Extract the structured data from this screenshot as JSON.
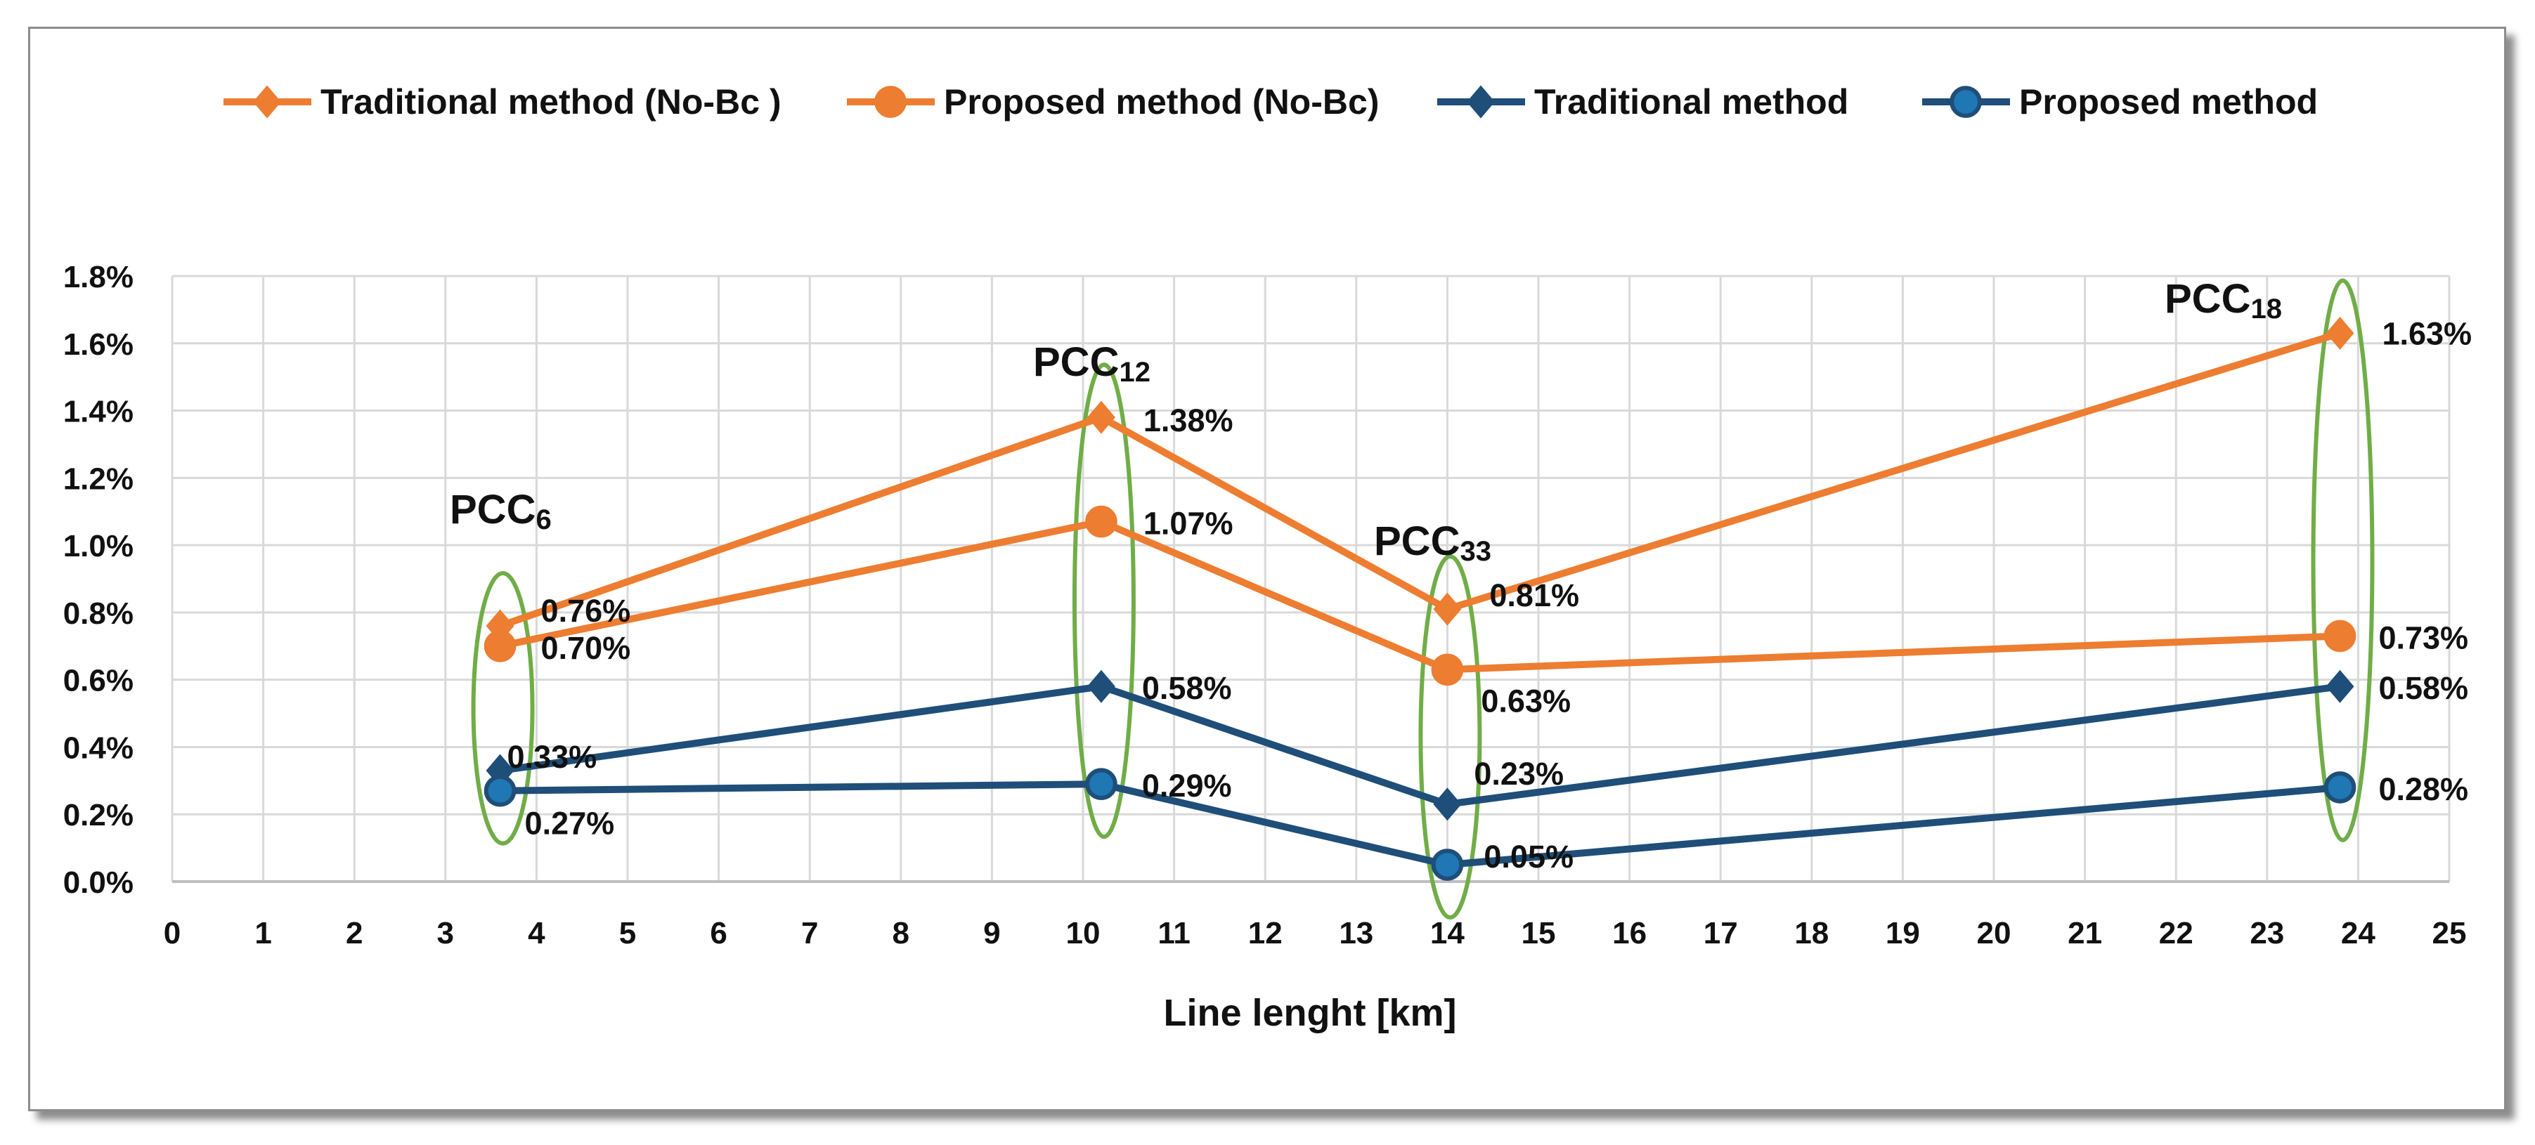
{
  "chart_data": {
    "type": "line",
    "xlabel": "Line lenght [km]",
    "ylabel": "",
    "xlim": [
      0,
      25
    ],
    "ylim": [
      0,
      1.8
    ],
    "x_ticks": [
      0,
      1,
      2,
      3,
      4,
      5,
      6,
      7,
      8,
      9,
      10,
      11,
      12,
      13,
      14,
      15,
      16,
      17,
      18,
      19,
      20,
      21,
      22,
      23,
      24,
      25
    ],
    "y_ticks": [
      0,
      0.2,
      0.4,
      0.6,
      0.8,
      1.0,
      1.2,
      1.4,
      1.6,
      1.8
    ],
    "y_tick_labels": [
      "0.0%",
      "0.2%",
      "0.4%",
      "0.6%",
      "0.8%",
      "1.0%",
      "1.2%",
      "1.4%",
      "1.6%",
      "1.8%"
    ],
    "grid": true,
    "legend_position": "top",
    "x": [
      3.6,
      10.2,
      14.0,
      23.8
    ],
    "series": [
      {
        "name": "Traditional method (No-Bc )",
        "color": "#ED7D31",
        "marker": "diamond",
        "values": [
          0.76,
          1.38,
          0.81,
          1.63
        ],
        "labels": [
          "0.76%",
          "1.38%",
          "0.81%",
          "1.63%"
        ]
      },
      {
        "name": "Proposed method (No-Bc)",
        "color": "#ED7D31",
        "marker": "circle",
        "values": [
          0.7,
          1.07,
          0.63,
          0.73
        ],
        "labels": [
          "0.70%",
          "1.07%",
          "0.63%",
          "0.73%"
        ]
      },
      {
        "name": "Traditional method",
        "color": "#1F4E79",
        "marker": "diamond",
        "values": [
          0.33,
          0.58,
          0.23,
          0.58
        ],
        "labels": [
          "0.33%",
          "0.58%",
          "0.23%",
          "0.58%"
        ]
      },
      {
        "name": "Proposed method",
        "color": "#1F4E79",
        "marker": "circle",
        "marker_fill": "#1F77B4",
        "values": [
          0.27,
          0.29,
          0.05,
          0.28
        ],
        "labels": [
          "0.27%",
          "0.29%",
          "0.05%",
          "0.28%"
        ]
      }
    ],
    "annotations": [
      {
        "x": 3.6,
        "main": "PCC",
        "sub": "6"
      },
      {
        "x": 10.2,
        "main": "PCC",
        "sub": "12"
      },
      {
        "x": 14.0,
        "main": "PCC",
        "sub": "33"
      },
      {
        "x": 23.8,
        "main": "PCC",
        "sub": "18"
      }
    ],
    "highlight_color": "#70AD47"
  }
}
